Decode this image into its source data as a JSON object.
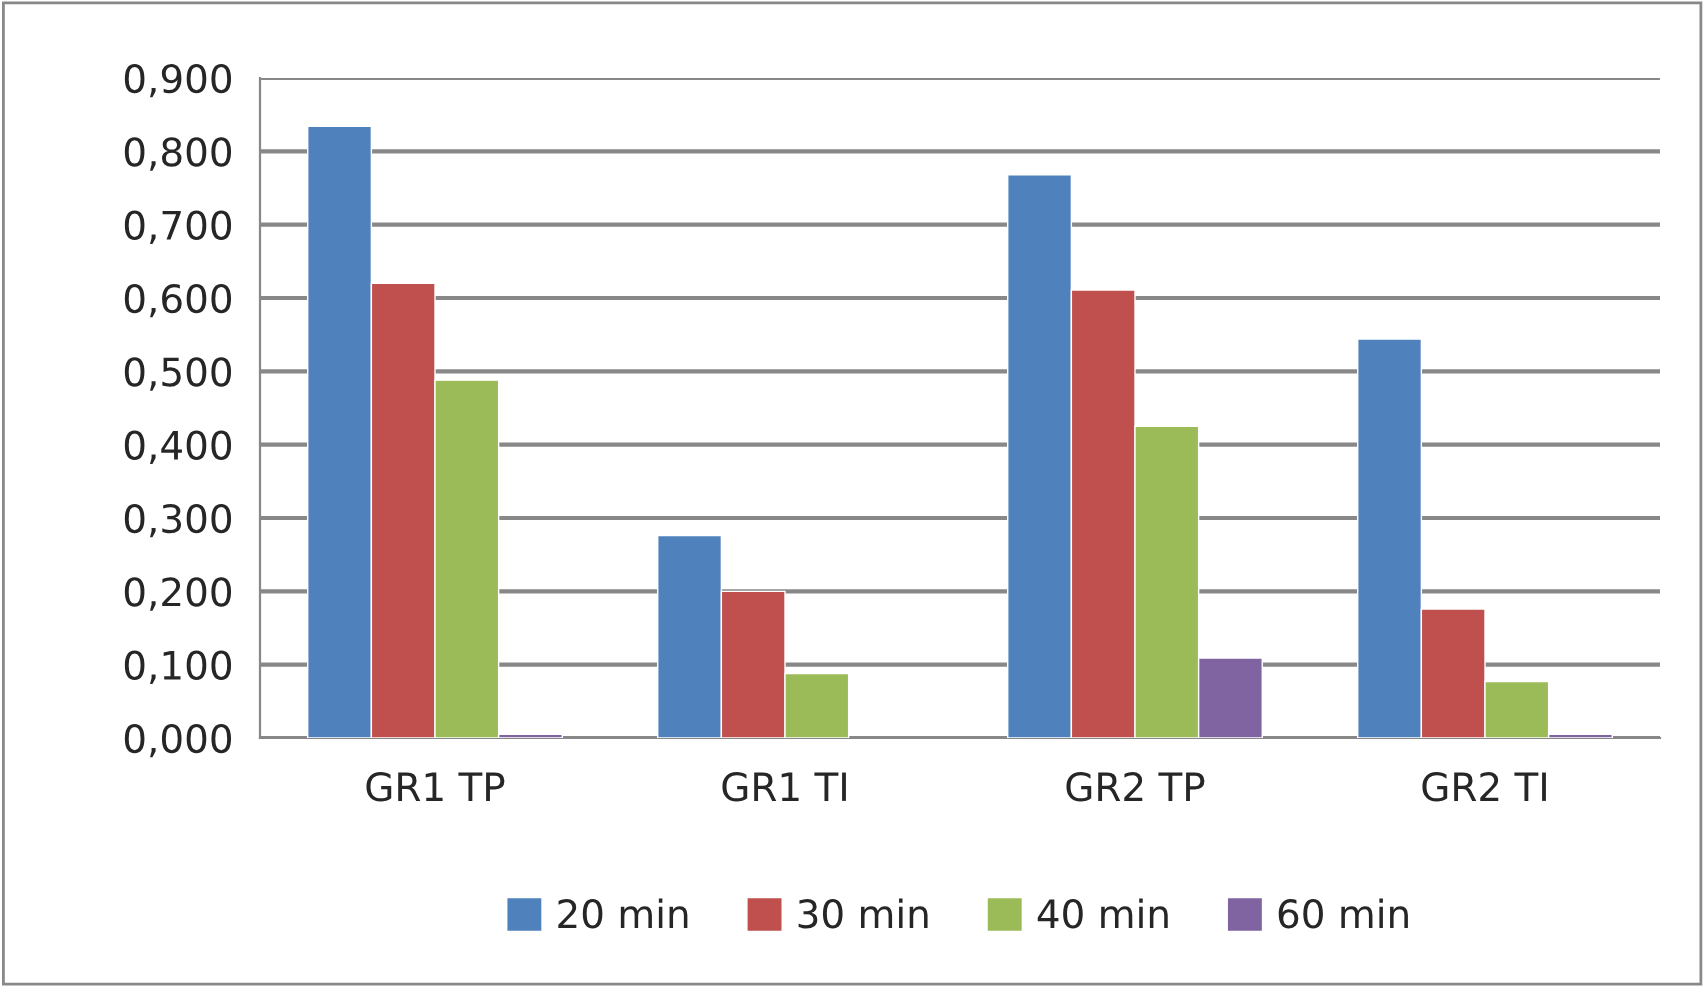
{
  "chart_data": {
    "type": "bar",
    "categories": [
      "GR1 TP",
      "GR1 TI",
      "GR2 TP",
      "GR2 TI"
    ],
    "series": [
      {
        "name": "20 min",
        "color": "#4f81bd",
        "values": [
          0.834,
          0.276,
          0.768,
          0.544
        ]
      },
      {
        "name": "30 min",
        "color": "#c0504d",
        "values": [
          0.62,
          0.2,
          0.611,
          0.176
        ]
      },
      {
        "name": "40 min",
        "color": "#9bbb59",
        "values": [
          0.488,
          0.088,
          0.425,
          0.077
        ]
      },
      {
        "name": "60 min",
        "color": "#8064a2",
        "values": [
          0.005,
          null,
          0.109,
          0.005
        ]
      }
    ],
    "ylim": [
      0,
      0.9
    ],
    "yticks": [
      {
        "value": 0,
        "label": "0,000"
      },
      {
        "value": 0.1,
        "label": "0,100"
      },
      {
        "value": 0.2,
        "label": "0,200"
      },
      {
        "value": 0.3,
        "label": "0,300"
      },
      {
        "value": 0.4,
        "label": "0,400"
      },
      {
        "value": 0.5,
        "label": "0,500"
      },
      {
        "value": 0.6,
        "label": "0,600"
      },
      {
        "value": 0.7,
        "label": "0,700"
      },
      {
        "value": 0.8,
        "label": "0,800"
      },
      {
        "value": 0.9,
        "label": "0,900"
      }
    ],
    "grid": "y",
    "legend": "bottom"
  }
}
